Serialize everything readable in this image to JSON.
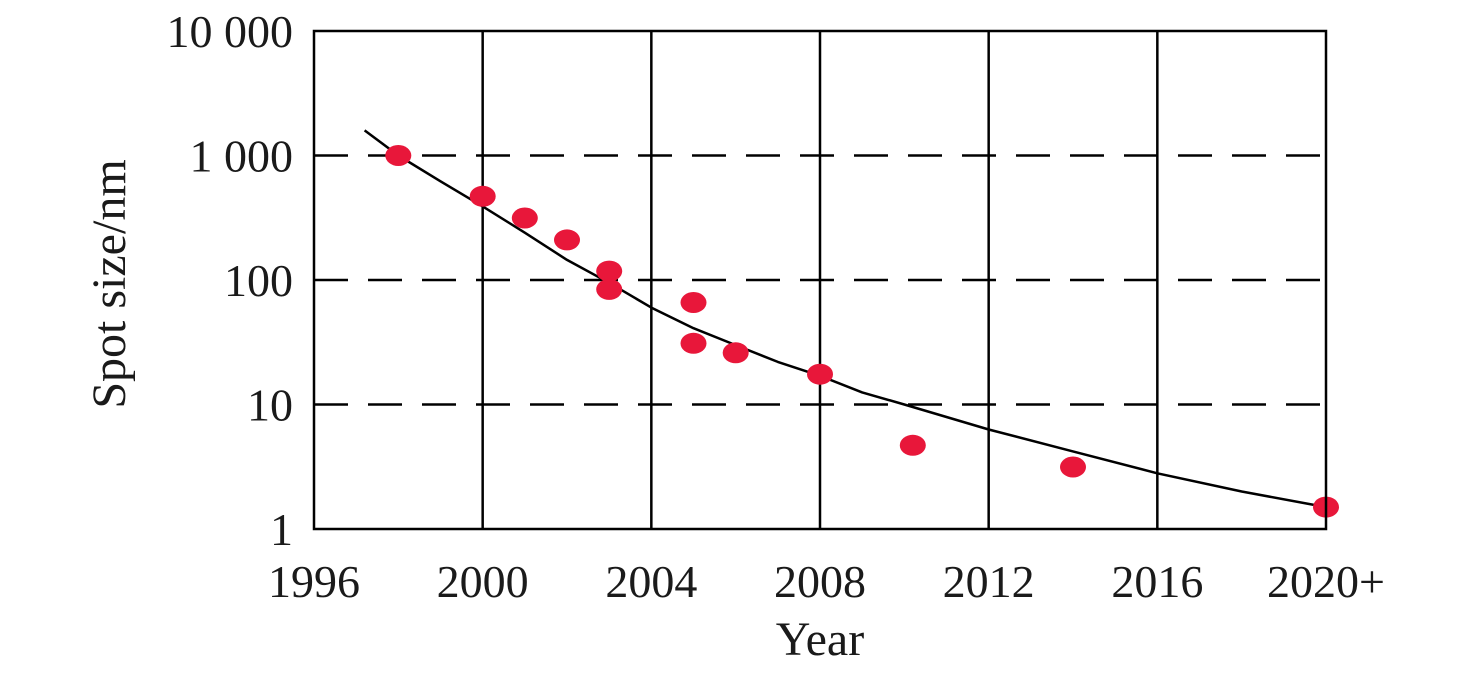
{
  "chart_data": {
    "type": "scatter",
    "title": "",
    "xlabel": "Year",
    "ylabel": "Spot size/nm",
    "x_scale": "linear",
    "y_scale": "log",
    "xlim": [
      1996,
      2020
    ],
    "ylim": [
      1,
      10000
    ],
    "x_ticks": [
      1996,
      2000,
      2004,
      2008,
      2012,
      2016,
      2020
    ],
    "x_tick_labels": [
      "1996",
      "2000",
      "2004",
      "2008",
      "2012",
      "2016",
      "2020+"
    ],
    "y_ticks": [
      1,
      10,
      100,
      1000,
      10000
    ],
    "y_tick_labels": [
      "1",
      "10",
      "100",
      "1 000",
      "10 000"
    ],
    "grid": {
      "vertical": "solid",
      "horizontal": "dashed"
    },
    "series": [
      {
        "kind": "points",
        "color": "#e8173a",
        "points": [
          {
            "x": 1998,
            "y": 1000
          },
          {
            "x": 2000,
            "y": 470
          },
          {
            "x": 2001,
            "y": 315
          },
          {
            "x": 2002,
            "y": 210
          },
          {
            "x": 2003,
            "y": 118
          },
          {
            "x": 2003,
            "y": 84
          },
          {
            "x": 2005,
            "y": 66
          },
          {
            "x": 2005,
            "y": 31
          },
          {
            "x": 2006,
            "y": 26
          },
          {
            "x": 2008,
            "y": 17.5
          },
          {
            "x": 2010.2,
            "y": 4.7
          },
          {
            "x": 2014,
            "y": 3.15
          },
          {
            "x": 2020,
            "y": 1.5
          }
        ]
      },
      {
        "kind": "trend-line",
        "color": "#000000",
        "points": [
          {
            "x": 1997.2,
            "y": 1590
          },
          {
            "x": 1998,
            "y": 1000
          },
          {
            "x": 1999,
            "y": 620
          },
          {
            "x": 2000,
            "y": 390
          },
          {
            "x": 2001,
            "y": 240
          },
          {
            "x": 2002,
            "y": 145
          },
          {
            "x": 2003,
            "y": 95
          },
          {
            "x": 2004,
            "y": 60
          },
          {
            "x": 2005,
            "y": 41
          },
          {
            "x": 2006,
            "y": 30
          },
          {
            "x": 2007,
            "y": 22
          },
          {
            "x": 2008,
            "y": 17
          },
          {
            "x": 2009,
            "y": 12.5
          },
          {
            "x": 2010,
            "y": 10
          },
          {
            "x": 2012,
            "y": 6.3
          },
          {
            "x": 2014,
            "y": 4.2
          },
          {
            "x": 2016,
            "y": 2.8
          },
          {
            "x": 2018,
            "y": 2.0
          },
          {
            "x": 2020,
            "y": 1.5
          }
        ]
      }
    ]
  }
}
